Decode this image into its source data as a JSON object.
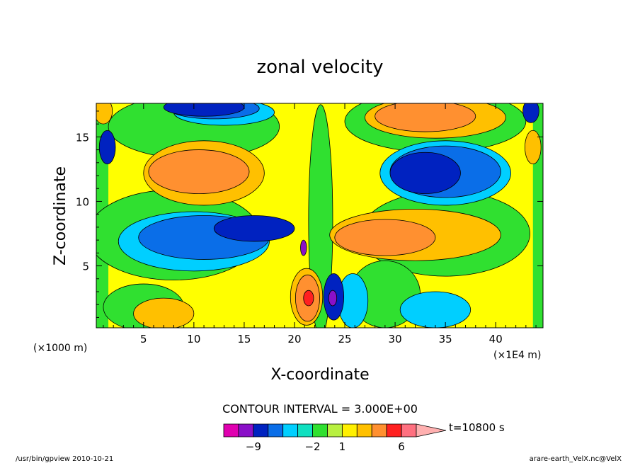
{
  "chart_data": {
    "type": "heatmap",
    "title": "zonal velocity",
    "xlabel": "X-coordinate",
    "ylabel": "Z-coordinate",
    "x_unit_left": "(×1000 m)",
    "x_unit_right": "(×1E4 m)",
    "x_ticks": [
      "5",
      "10",
      "15",
      "20",
      "25",
      "30",
      "35",
      "40"
    ],
    "x_tick_values": [
      5,
      10,
      15,
      20,
      25,
      30,
      35,
      40
    ],
    "y_ticks": [
      "5",
      "10",
      "15"
    ],
    "y_tick_values": [
      5,
      10,
      15
    ],
    "xlim": [
      0.3,
      44.7
    ],
    "ylim": [
      0.2,
      17.6
    ],
    "contour_interval": "CONTOUR INTERVAL = 3.000E+00",
    "time_label": "t=10800 s",
    "colorbar_labels": [
      "−9",
      "−2",
      "1",
      "6"
    ],
    "colorbar_label_index": [
      2,
      6,
      8,
      12
    ],
    "colorbar_colors": [
      "#e000b0",
      "#8a10c8",
      "#0022c0",
      "#0a6ee8",
      "#00cfff",
      "#10e0c0",
      "#30e030",
      "#b8f040",
      "#fff000",
      "#ffc000",
      "#ff9030",
      "#ff2020",
      "#ff7080",
      "#ffb0b0"
    ],
    "footer_left": "/usr/bin/gpview   2010-10-21",
    "footer_right": "arare-earth_VelX.nc@VelX",
    "regions": [
      {
        "level": "#ffff00",
        "x": [
          1.5,
          43.7
        ],
        "y": [
          0.2,
          17.6
        ],
        "ell": [
          22.6,
          8.9,
          22.1,
          8.7
        ]
      },
      {
        "level": "#30e030",
        "x": [
          0.3,
          44.7
        ],
        "y": [
          0.2,
          17.6
        ],
        "ell": [
          8,
          7.4,
          8.6,
          3.5
        ]
      },
      {
        "level": "#30e030",
        "x": [
          0.3,
          44.7
        ],
        "y": [
          0.2,
          17.6
        ],
        "ell": [
          35,
          7.5,
          8.4,
          3.3
        ]
      },
      {
        "level": "#30e030",
        "x": [
          0.3,
          44.7
        ],
        "y": [
          0.2,
          17.6
        ],
        "ell": [
          10,
          15.8,
          8.5,
          2.5
        ]
      },
      {
        "level": "#30e030",
        "x": [
          0.3,
          44.7
        ],
        "y": [
          0.2,
          17.6
        ],
        "ell": [
          34,
          16.2,
          9,
          2.4
        ]
      },
      {
        "level": "#30e030",
        "x": [
          0.3,
          44.7
        ],
        "y": [
          0.2,
          17.6
        ],
        "ell": [
          22.6,
          8.5,
          1.2,
          9
        ]
      },
      {
        "level": "#30e030",
        "x": [
          0.3,
          44.7
        ],
        "y": [
          0.2,
          17.6
        ],
        "ell": [
          5,
          1.8,
          4,
          1.8
        ]
      },
      {
        "level": "#30e030",
        "x": [
          0.3,
          44.7
        ],
        "y": [
          0.2,
          17.6
        ],
        "ell": [
          29,
          2.8,
          3.5,
          2.6
        ]
      },
      {
        "level": "#00cfff",
        "x": [
          0.3,
          44.7
        ],
        "y": [
          0.2,
          17.6
        ],
        "ell": [
          10,
          6.9,
          7.5,
          2.3
        ]
      },
      {
        "level": "#00cfff",
        "x": [
          0.3,
          44.7
        ],
        "y": [
          0.2,
          17.6
        ],
        "ell": [
          35,
          12.2,
          6.5,
          2.5
        ]
      },
      {
        "level": "#00cfff",
        "x": [
          0.3,
          44.7
        ],
        "y": [
          0.2,
          17.6
        ],
        "ell": [
          13,
          16.9,
          5,
          1
        ]
      },
      {
        "level": "#00cfff",
        "x": [
          0.3,
          44.7
        ],
        "y": [
          0.2,
          17.6
        ],
        "ell": [
          34,
          1.6,
          3.5,
          1.4
        ]
      },
      {
        "level": "#00cfff",
        "x": [
          0.3,
          44.7
        ],
        "y": [
          0.2,
          17.6
        ],
        "ell": [
          25.8,
          2.3,
          1.5,
          2.1
        ]
      },
      {
        "level": "#0a6ee8",
        "x": [
          0.3,
          44.7
        ],
        "y": [
          0.2,
          17.6
        ],
        "ell": [
          11,
          7.2,
          6.5,
          1.7
        ]
      },
      {
        "level": "#0a6ee8",
        "x": [
          0.3,
          44.7
        ],
        "y": [
          0.2,
          17.6
        ],
        "ell": [
          35,
          12.3,
          5.5,
          2
        ]
      },
      {
        "level": "#0a6ee8",
        "x": [
          0.3,
          44.7
        ],
        "y": [
          0.2,
          17.6
        ],
        "ell": [
          12,
          17.2,
          4.5,
          0.8
        ]
      },
      {
        "level": "#0022c0",
        "x": [
          0.3,
          44.7
        ],
        "y": [
          0.2,
          17.6
        ],
        "ell": [
          16,
          7.9,
          4,
          1
        ]
      },
      {
        "level": "#0022c0",
        "x": [
          0.3,
          44.7
        ],
        "y": [
          0.2,
          17.6
        ],
        "ell": [
          33,
          12.2,
          3.5,
          1.6
        ]
      },
      {
        "level": "#0022c0",
        "x": [
          0.3,
          44.7
        ],
        "y": [
          0.2,
          17.6
        ],
        "ell": [
          11,
          17.3,
          4,
          0.7
        ]
      },
      {
        "level": "#0022c0",
        "x": [
          0.3,
          44.7
        ],
        "y": [
          0.2,
          17.6
        ],
        "ell": [
          23.9,
          2.6,
          1,
          1.8
        ]
      },
      {
        "level": "#0022c0",
        "x": [
          0.3,
          44.7
        ],
        "y": [
          0.2,
          17.6
        ],
        "ell": [
          1.4,
          14.2,
          0.8,
          1.3
        ]
      },
      {
        "level": "#0022c0",
        "x": [
          0.3,
          44.7
        ],
        "y": [
          0.2,
          17.6
        ],
        "ell": [
          43.5,
          17,
          0.8,
          0.9
        ]
      },
      {
        "level": "#ffc000",
        "x": [
          0.3,
          44.7
        ],
        "y": [
          0.2,
          17.6
        ],
        "ell": [
          11,
          12.2,
          6,
          2.5
        ]
      },
      {
        "level": "#ffc000",
        "x": [
          0.3,
          44.7
        ],
        "y": [
          0.2,
          17.6
        ],
        "ell": [
          32,
          7.4,
          8.5,
          2
        ]
      },
      {
        "level": "#ffc000",
        "x": [
          0.3,
          44.7
        ],
        "y": [
          0.2,
          17.6
        ],
        "ell": [
          34,
          16.5,
          7,
          1.6
        ]
      },
      {
        "level": "#ffc000",
        "x": [
          0.3,
          44.7
        ],
        "y": [
          0.2,
          17.6
        ],
        "ell": [
          21.2,
          2.6,
          1.6,
          2.2
        ]
      },
      {
        "level": "#ffc000",
        "x": [
          0.3,
          44.7
        ],
        "y": [
          0.2,
          17.6
        ],
        "ell": [
          7,
          1.3,
          3,
          1.2
        ]
      },
      {
        "level": "#ffc000",
        "x": [
          0.3,
          44.7
        ],
        "y": [
          0.2,
          17.6
        ],
        "ell": [
          1,
          17,
          0.9,
          1
        ]
      },
      {
        "level": "#ffc000",
        "x": [
          0.3,
          44.7
        ],
        "y": [
          0.2,
          17.6
        ],
        "ell": [
          43.7,
          14.2,
          0.8,
          1.3
        ]
      },
      {
        "level": "#ff9030",
        "x": [
          0.3,
          44.7
        ],
        "y": [
          0.2,
          17.6
        ],
        "ell": [
          10.5,
          12.3,
          5,
          1.7
        ]
      },
      {
        "level": "#ff9030",
        "x": [
          0.3,
          44.7
        ],
        "y": [
          0.2,
          17.6
        ],
        "ell": [
          29,
          7.2,
          5,
          1.4
        ]
      },
      {
        "level": "#ff9030",
        "x": [
          0.3,
          44.7
        ],
        "y": [
          0.2,
          17.6
        ],
        "ell": [
          33,
          16.6,
          5,
          1.2
        ]
      },
      {
        "level": "#ff9030",
        "x": [
          0.3,
          44.7
        ],
        "y": [
          0.2,
          17.6
        ],
        "ell": [
          21.3,
          2.5,
          1.2,
          1.8
        ]
      },
      {
        "level": "#ff2020",
        "x": [
          0.3,
          44.7
        ],
        "y": [
          0.2,
          17.6
        ],
        "ell": [
          21.4,
          2.5,
          0.5,
          0.6
        ]
      },
      {
        "level": "#8a10c8",
        "x": [
          0.3,
          44.7
        ],
        "y": [
          0.2,
          17.6
        ],
        "ell": [
          23.8,
          2.5,
          0.4,
          0.6
        ]
      },
      {
        "level": "#8a10c8",
        "x": [
          0.3,
          44.7
        ],
        "y": [
          0.2,
          17.6
        ],
        "ell": [
          20.9,
          6.4,
          0.3,
          0.6
        ]
      }
    ]
  }
}
